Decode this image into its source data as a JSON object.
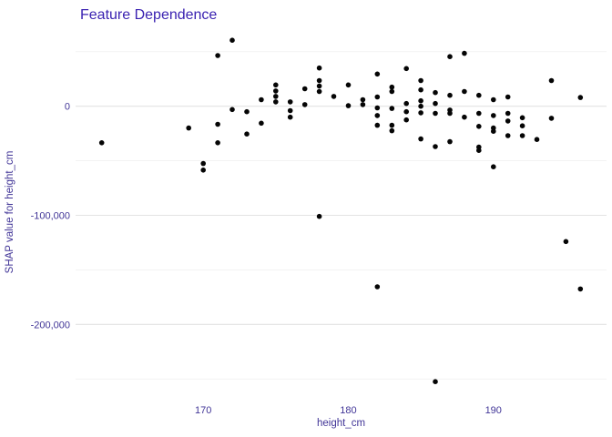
{
  "header": {
    "title": "Feature Dependence"
  },
  "colors": {
    "title": "#3a22b1",
    "axis_text": "#413597",
    "grid_major": "#e3e3e3",
    "grid_minor": "#efefef",
    "point": "#050505",
    "background": "#ffffff"
  },
  "chart_data": {
    "type": "scatter",
    "title": "Feature Dependence",
    "xlabel": "height_cm",
    "ylabel": "SHAP value for height_cm",
    "legend": "none",
    "grid": "horizontal-only",
    "xlim": [
      161.2,
      197.8
    ],
    "ylim": [
      -259000,
      64000
    ],
    "x_ticks": [
      {
        "value": 170,
        "label": "170"
      },
      {
        "value": 180,
        "label": "180"
      },
      {
        "value": 190,
        "label": "190"
      }
    ],
    "y_ticks": [
      {
        "value": 0,
        "label": "0"
      },
      {
        "value": -100000,
        "label": "-100,000"
      },
      {
        "value": -200000,
        "label": "-200,000"
      }
    ],
    "y_minor_gridlines": [
      50000,
      -50000,
      -150000,
      -250000
    ],
    "points": [
      [
        163,
        -33500
      ],
      [
        169,
        -20000
      ],
      [
        170,
        -52500
      ],
      [
        170,
        -58500
      ],
      [
        171,
        46500
      ],
      [
        171,
        -16500
      ],
      [
        171,
        -33500
      ],
      [
        172,
        60500
      ],
      [
        172,
        -3000
      ],
      [
        173,
        -5000
      ],
      [
        173,
        -25500
      ],
      [
        174,
        6000
      ],
      [
        174,
        -15500
      ],
      [
        175,
        19500
      ],
      [
        175,
        14000
      ],
      [
        175,
        9000
      ],
      [
        175,
        4000
      ],
      [
        176,
        4000
      ],
      [
        176,
        -4000
      ],
      [
        176,
        -10000
      ],
      [
        177,
        16000
      ],
      [
        177,
        1500
      ],
      [
        178,
        35000
      ],
      [
        178,
        23500
      ],
      [
        178,
        18500
      ],
      [
        178,
        13500
      ],
      [
        178,
        -101000
      ],
      [
        179,
        9000
      ],
      [
        180,
        19500
      ],
      [
        180,
        500
      ],
      [
        181,
        6000
      ],
      [
        181,
        1500
      ],
      [
        182,
        29500
      ],
      [
        182,
        8500
      ],
      [
        182,
        -1500
      ],
      [
        182,
        -8500
      ],
      [
        182,
        -17500
      ],
      [
        182,
        -165500
      ],
      [
        183,
        17500
      ],
      [
        183,
        13500
      ],
      [
        183,
        -2000
      ],
      [
        183,
        -17500
      ],
      [
        183,
        -22500
      ],
      [
        184,
        34500
      ],
      [
        184,
        2500
      ],
      [
        184,
        -5000
      ],
      [
        184,
        -12500
      ],
      [
        185,
        23500
      ],
      [
        185,
        15000
      ],
      [
        185,
        5000
      ],
      [
        185,
        0
      ],
      [
        185,
        -6000
      ],
      [
        185,
        -30000
      ],
      [
        186,
        12500
      ],
      [
        186,
        2500
      ],
      [
        186,
        -6500
      ],
      [
        186,
        -37000
      ],
      [
        186,
        -252500
      ],
      [
        187,
        45500
      ],
      [
        187,
        10000
      ],
      [
        187,
        -3500
      ],
      [
        187,
        -6500
      ],
      [
        187,
        -32500
      ],
      [
        188,
        48500
      ],
      [
        188,
        13500
      ],
      [
        188,
        -10000
      ],
      [
        189,
        10000
      ],
      [
        189,
        -6500
      ],
      [
        189,
        -18500
      ],
      [
        189,
        -37500
      ],
      [
        189,
        -40500
      ],
      [
        190,
        6000
      ],
      [
        190,
        -8500
      ],
      [
        190,
        -20000
      ],
      [
        190,
        -23000
      ],
      [
        190,
        -55500
      ],
      [
        191,
        8500
      ],
      [
        191,
        -6500
      ],
      [
        191,
        -13500
      ],
      [
        191,
        -27000
      ],
      [
        192,
        -10500
      ],
      [
        192,
        -18000
      ],
      [
        192,
        -27000
      ],
      [
        193,
        -30500
      ],
      [
        194,
        23500
      ],
      [
        194,
        -11000
      ],
      [
        195,
        -124000
      ],
      [
        196,
        8000
      ],
      [
        196,
        -167500
      ]
    ]
  }
}
